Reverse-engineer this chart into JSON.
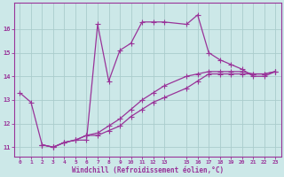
{
  "xlabel": "Windchill (Refroidissement éolien,°C)",
  "bg_color": "#cce8e8",
  "line_color": "#993399",
  "grid_color": "#aacccc",
  "curve1_x": [
    0,
    1,
    2,
    3,
    4,
    5,
    6,
    7,
    8,
    9,
    10,
    11,
    12,
    13,
    15,
    16,
    17,
    18,
    19,
    20,
    21,
    22,
    23
  ],
  "curve1_y": [
    13.3,
    12.9,
    11.1,
    11.0,
    11.2,
    11.3,
    11.3,
    16.2,
    13.8,
    15.1,
    15.4,
    16.3,
    16.3,
    16.3,
    16.2,
    16.6,
    15.0,
    14.7,
    14.5,
    14.3,
    14.0,
    14.0,
    14.2
  ],
  "curve2_x": [
    2,
    3,
    4,
    5,
    6,
    7,
    8,
    9,
    10,
    11,
    12,
    13,
    15,
    16,
    17,
    18,
    19,
    20,
    21,
    22,
    23
  ],
  "curve2_y": [
    11.1,
    11.0,
    11.2,
    11.3,
    11.5,
    11.5,
    11.7,
    11.9,
    12.3,
    12.6,
    12.9,
    13.1,
    13.5,
    13.8,
    14.1,
    14.1,
    14.1,
    14.1,
    14.1,
    14.1,
    14.2
  ],
  "curve3_x": [
    2,
    3,
    4,
    5,
    6,
    7,
    8,
    9,
    10,
    11,
    12,
    13,
    15,
    16,
    17,
    18,
    19,
    20,
    21,
    22,
    23
  ],
  "curve3_y": [
    11.1,
    11.0,
    11.2,
    11.3,
    11.5,
    11.6,
    11.9,
    12.2,
    12.6,
    13.0,
    13.3,
    13.6,
    14.0,
    14.1,
    14.2,
    14.2,
    14.2,
    14.2,
    14.1,
    14.1,
    14.2
  ],
  "ylim": [
    10.6,
    17.1
  ],
  "xlim": [
    -0.5,
    23.5
  ],
  "yticks": [
    11,
    12,
    13,
    14,
    15,
    16
  ],
  "xticks": [
    0,
    1,
    2,
    3,
    4,
    5,
    6,
    7,
    8,
    9,
    10,
    11,
    12,
    13,
    15,
    16,
    17,
    18,
    19,
    20,
    21,
    22,
    23
  ]
}
